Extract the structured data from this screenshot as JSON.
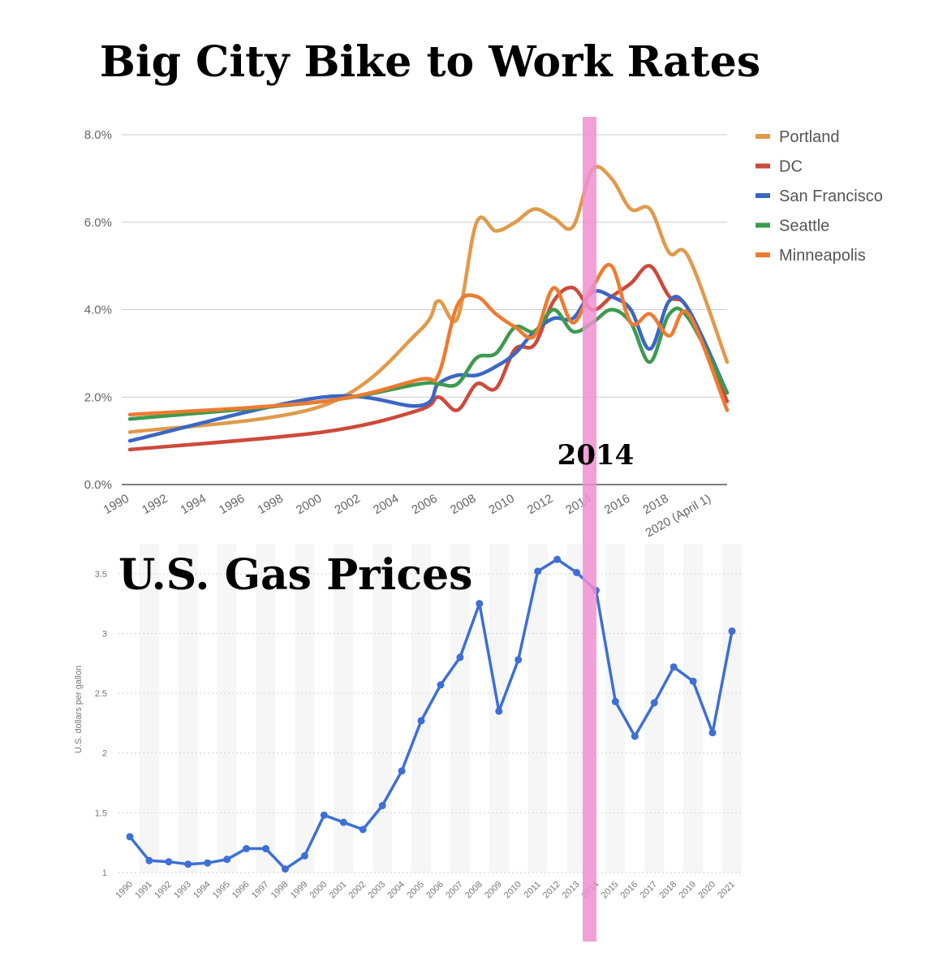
{
  "highlight": {
    "year": "2014",
    "color": "#f08fd0",
    "label": "2014"
  },
  "chart_data": [
    {
      "type": "line",
      "title": "Big City Bike to Work Rates",
      "xlabel": "",
      "ylabel": "",
      "categories": [
        "1990",
        "2000",
        "2005",
        "2006",
        "2007",
        "2008",
        "2009",
        "2010",
        "2011",
        "2012",
        "2013",
        "2014",
        "2015",
        "2016",
        "2017",
        "2018",
        "2019",
        "2020 (April 1)"
      ],
      "x_ticks": [
        "1990",
        "1992",
        "1994",
        "1996",
        "1998",
        "2000",
        "2002",
        "2004",
        "2006",
        "2008",
        "2010",
        "2012",
        "2014",
        "2016",
        "2018",
        "2020 (April 1)"
      ],
      "y_ticks": [
        "0.0%",
        "2.0%",
        "4.0%",
        "6.0%",
        "8.0%"
      ],
      "ylim": [
        0,
        8
      ],
      "grid": true,
      "legend_position": "right",
      "series": [
        {
          "name": "Portland",
          "color": "#e09a4a",
          "values": [
            1.2,
            1.8,
            3.5,
            4.2,
            3.8,
            6.0,
            5.8,
            6.0,
            6.3,
            6.1,
            5.9,
            7.2,
            7.0,
            6.3,
            6.3,
            5.3,
            5.2,
            2.8
          ]
        },
        {
          "name": "DC",
          "color": "#cc4a3c",
          "values": [
            0.8,
            1.2,
            1.7,
            2.0,
            1.7,
            2.3,
            2.2,
            3.1,
            3.2,
            4.2,
            4.5,
            4.0,
            4.3,
            4.6,
            5.0,
            4.3,
            4.0,
            1.9
          ]
        },
        {
          "name": "San Francisco",
          "color": "#3b66c4",
          "values": [
            1.0,
            2.0,
            1.8,
            2.3,
            2.5,
            2.5,
            2.7,
            3.0,
            3.5,
            3.8,
            3.8,
            4.4,
            4.3,
            4.0,
            3.1,
            4.2,
            4.0,
            2.1
          ]
        },
        {
          "name": "Seattle",
          "color": "#3e9a4e",
          "values": [
            1.5,
            1.9,
            2.3,
            2.3,
            2.3,
            2.9,
            3.0,
            3.6,
            3.5,
            4.0,
            3.5,
            3.7,
            4.0,
            3.7,
            2.8,
            3.9,
            3.8,
            2.1
          ]
        },
        {
          "name": "Minneapolis",
          "color": "#ee7b30",
          "values": [
            1.6,
            1.9,
            2.4,
            2.5,
            4.1,
            4.3,
            3.9,
            3.6,
            3.4,
            4.5,
            3.7,
            4.5,
            5.0,
            3.7,
            3.9,
            3.4,
            3.9,
            1.7
          ]
        }
      ]
    },
    {
      "type": "line",
      "title": "U.S. Gas Prices",
      "xlabel": "",
      "ylabel": "U.S. dollars per gallon",
      "categories": [
        "1990",
        "1991",
        "1992",
        "1993",
        "1994",
        "1995",
        "1996",
        "1997",
        "1998",
        "1999",
        "2000",
        "2001",
        "2002",
        "2003",
        "2004",
        "2005",
        "2006",
        "2007",
        "2008",
        "2009",
        "2010",
        "2011",
        "2012",
        "2013",
        "2014",
        "2015",
        "2016",
        "2017",
        "2018",
        "2019",
        "2020",
        "2021"
      ],
      "y_ticks": [
        "1",
        "1.5",
        "2",
        "2.5",
        "3",
        "3.5"
      ],
      "ylim": [
        1,
        3.75
      ],
      "grid": true,
      "series": [
        {
          "name": "",
          "color": "#3d6fd6",
          "values": [
            1.3,
            1.1,
            1.09,
            1.07,
            1.08,
            1.11,
            1.2,
            1.2,
            1.03,
            1.14,
            1.48,
            1.42,
            1.36,
            1.56,
            1.85,
            2.27,
            2.57,
            2.8,
            3.25,
            2.35,
            2.78,
            3.52,
            3.62,
            3.51,
            3.36,
            2.43,
            2.14,
            2.42,
            2.72,
            2.6,
            2.17,
            3.02
          ]
        }
      ]
    }
  ]
}
